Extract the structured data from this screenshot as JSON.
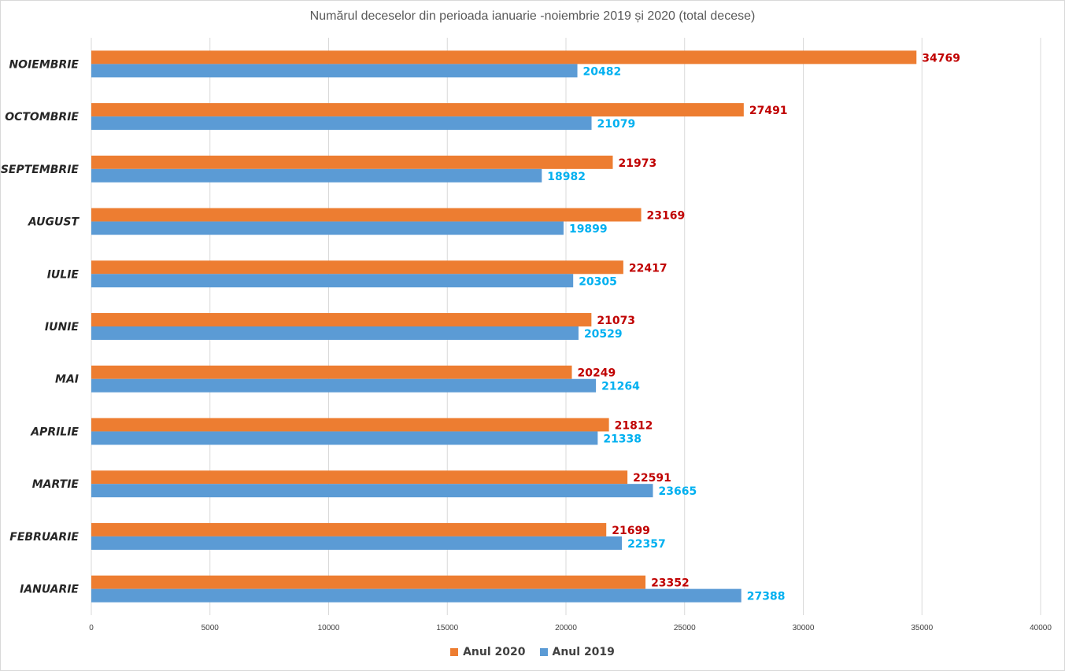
{
  "chart_data": {
    "type": "bar",
    "orientation": "horizontal",
    "title": "Numărul deceselor din perioada ianuarie -noiembrie 2019 și 2020 (total decese)",
    "categories": [
      "IANUARIE",
      "FEBRUARIE",
      "MARTIE",
      "APRILIE",
      "MAI",
      "IUNIE",
      "IULIE",
      "AUGUST",
      "SEPTEMBRIE",
      "OCTOMBRIE",
      "NOIEMBRIE"
    ],
    "series": [
      {
        "name": "Anul 2020",
        "color": "#ed7d31",
        "label_color": "#c00000",
        "values": [
          23352,
          21699,
          22591,
          21812,
          20249,
          21073,
          22417,
          23169,
          21973,
          27491,
          34769
        ]
      },
      {
        "name": "Anul 2019",
        "color": "#5b9bd5",
        "label_color": "#00b0f0",
        "values": [
          27388,
          22357,
          23665,
          21338,
          21264,
          20529,
          20305,
          19899,
          18982,
          21079,
          20482
        ]
      }
    ],
    "xlim": [
      0,
      40000
    ],
    "xticks": [
      0,
      5000,
      10000,
      15000,
      20000,
      25000,
      30000,
      35000,
      40000
    ],
    "grid": true,
    "legend_position": "bottom"
  }
}
